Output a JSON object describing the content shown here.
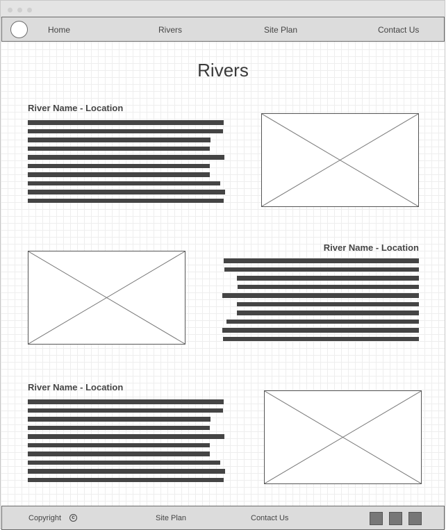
{
  "nav": {
    "home": "Home",
    "rivers": "Rivers",
    "site_plan": "Site Plan",
    "contact": "Contact Us"
  },
  "page": {
    "title": "Rivers"
  },
  "sections": [
    {
      "title": "River Name - Location",
      "image_alt": "image-placeholder"
    },
    {
      "title": "River Name - Location",
      "image_alt": "image-placeholder"
    },
    {
      "title": "River Name - Location",
      "image_alt": "image-placeholder"
    }
  ],
  "footer": {
    "copyright": "Copyright",
    "copyright_symbol": "c",
    "site_plan": "Site Plan",
    "contact": "Contact Us",
    "social_icons": [
      "social-icon",
      "social-icon",
      "social-icon"
    ]
  },
  "colors": {
    "bar": "#444444",
    "chrome": "#dcdcdc",
    "grid": "#eeeeee"
  }
}
